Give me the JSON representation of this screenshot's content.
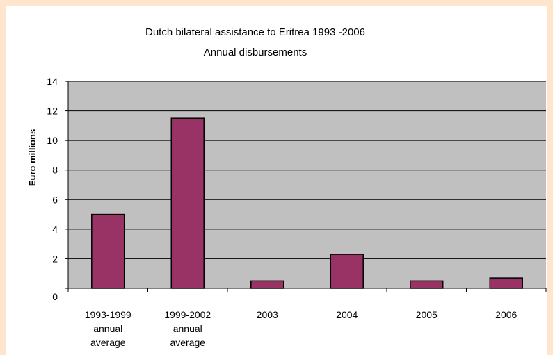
{
  "chart_data": {
    "type": "bar",
    "title": "Dutch bilateral assistance to Eritrea 1993 -2006",
    "subtitle": "Annual disbursements",
    "ylabel": "Euro millions",
    "xlabel": "",
    "ylim": [
      0,
      14
    ],
    "yticks": [
      0,
      2,
      4,
      6,
      8,
      10,
      12,
      14
    ],
    "categories": [
      [
        "1993-1999",
        "annual",
        "average"
      ],
      [
        "1999-2002",
        "annual",
        "average"
      ],
      [
        "2003"
      ],
      [
        "2004"
      ],
      [
        "2005"
      ],
      [
        "2006"
      ]
    ],
    "values": [
      5.0,
      11.5,
      0.5,
      2.3,
      0.5,
      0.7
    ],
    "grid": true,
    "legend": "none",
    "colors": {
      "bar": "#993366",
      "plot_background": "#C0C0C0",
      "page_background": "#FFE5CC"
    }
  }
}
